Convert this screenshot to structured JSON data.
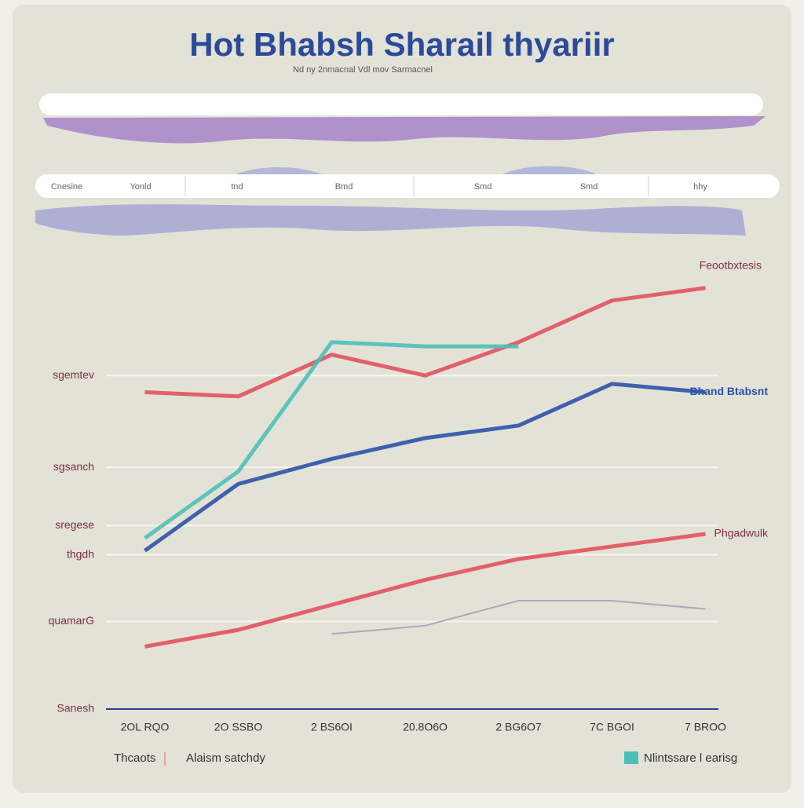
{
  "chart_data": {
    "type": "line",
    "title": "Hot Bhabsh Sharail thyariir",
    "subtitle": "Nd ny  2nmacnal Vdl mov  Sarmacnel",
    "header_labels": [
      "Cnesine",
      "Yonld",
      "tnd",
      "Bmd",
      "Smd",
      "Smd",
      "hhy"
    ],
    "categories": [
      "2OL RQO",
      "2O SSBO",
      "2 BS6OI",
      "20.8O6O",
      "2 BG6O7",
      "7C BGOI",
      "7 BROO"
    ],
    "ylim": [
      0,
      105
    ],
    "yticks": [
      {
        "value": 0,
        "label": "Sanesh"
      },
      {
        "value": 21,
        "label": "quamarG"
      },
      {
        "value": 37,
        "label": "thgdh"
      },
      {
        "value": 44,
        "label": "sregese"
      },
      {
        "value": 58,
        "label": "sgsanch"
      },
      {
        "value": 80,
        "label": "sgemtev"
      }
    ],
    "grid": true,
    "series": [
      {
        "name": "Feootbxtesis",
        "color": "#e0525e",
        "values": [
          76,
          75,
          85,
          80,
          88,
          98,
          101
        ]
      },
      {
        "name": "Nlintssare l earisg",
        "color": "#4cc0b8",
        "values": [
          41,
          57,
          88,
          87,
          87,
          null,
          null
        ]
      },
      {
        "name": "Bhand Btabsnt",
        "color": "#2b52a8",
        "values": [
          38,
          54,
          60,
          65,
          68,
          78,
          76
        ]
      },
      {
        "name": "Phgadwulk",
        "color": "#e0525e",
        "values": [
          15,
          19,
          25,
          31,
          36,
          39,
          42
        ]
      },
      {
        "color": "#a6a3b2",
        "values": [
          null,
          null,
          18,
          20,
          26,
          26,
          24
        ]
      }
    ],
    "footnotes": [
      "Thcaots",
      "Alaism satchdy"
    ]
  }
}
